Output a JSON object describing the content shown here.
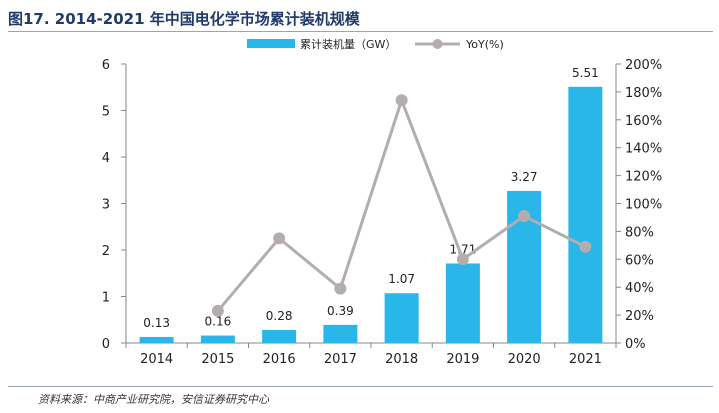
{
  "figure_title": "图17. 2014-2021 年中国电化学市场累计装机规模",
  "source_note": "资料来源：中商产业研究院，安信证券研究中心",
  "colors": {
    "bar": "#29b6e8",
    "line": "#b3adad",
    "title": "#1f3a6b"
  },
  "chart_data": {
    "type": "bar",
    "categories": [
      "2014",
      "2015",
      "2016",
      "2017",
      "2018",
      "2019",
      "2020",
      "2021"
    ],
    "series": [
      {
        "name": "累计装机量（GW）",
        "type": "bar",
        "axis": "left",
        "values": [
          0.13,
          0.16,
          0.28,
          0.39,
          1.07,
          1.71,
          3.27,
          5.51
        ],
        "labels": [
          "0.13",
          "0.16",
          "0.28",
          "0.39",
          "1.07",
          "1.71",
          "3.27",
          "5.51"
        ]
      },
      {
        "name": "YoY(%)",
        "type": "line",
        "axis": "right",
        "values": [
          null,
          23,
          75,
          39,
          174,
          60,
          91,
          69
        ]
      }
    ],
    "y_left": {
      "min": 0,
      "max": 6,
      "ticks": [
        "0",
        "1",
        "2",
        "3",
        "4",
        "5",
        "6"
      ]
    },
    "y_right": {
      "min": 0,
      "max": 200,
      "ticks": [
        "0%",
        "20%",
        "40%",
        "60%",
        "80%",
        "100%",
        "120%",
        "140%",
        "160%",
        "180%",
        "200%"
      ]
    },
    "legend_position": "top",
    "grid": false
  }
}
